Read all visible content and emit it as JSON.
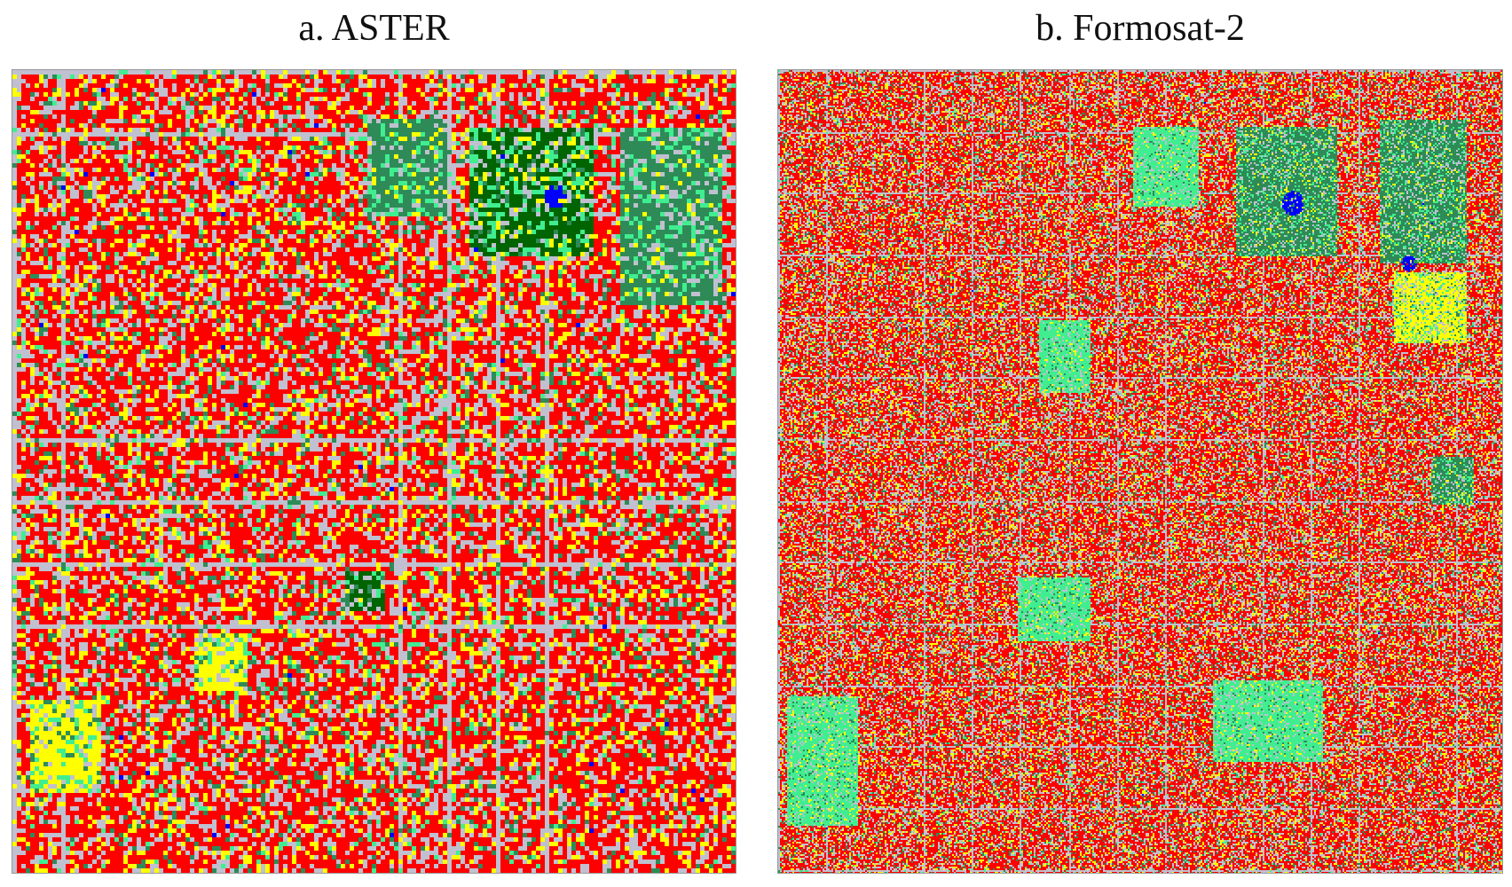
{
  "panels": [
    {
      "id": "aster",
      "caption": "a. ASTER",
      "grain": 5,
      "seed": 1337,
      "speckle": 0.55
    },
    {
      "id": "formosat2",
      "caption": "b. Formosat-2",
      "grain": 2,
      "seed": 4242,
      "speckle": 0.45
    }
  ],
  "palette": {
    "built_up": "#ff0000",
    "road_bare": "#c0c0d0",
    "mixed": "#ffff00",
    "grass": "#40ee90",
    "trees": "#2e8b57",
    "dense_forest": "#006400",
    "water": "#0000ff"
  }
}
